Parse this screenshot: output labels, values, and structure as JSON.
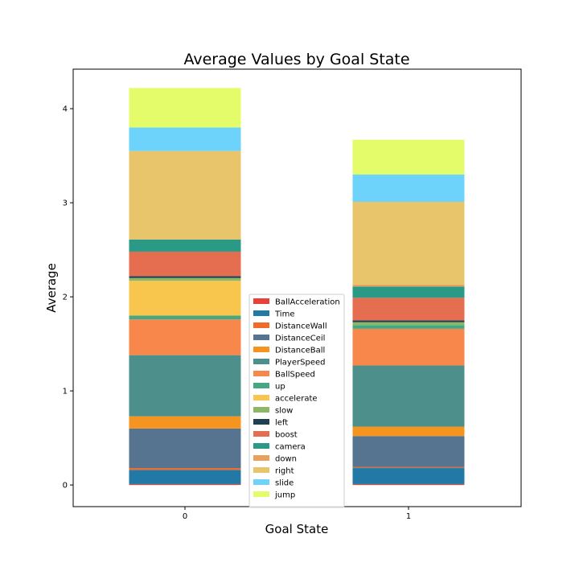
{
  "chart_data": {
    "type": "bar",
    "stacked": true,
    "title": "Average Values by Goal State",
    "xlabel": "Goal State",
    "ylabel": "Average",
    "categories": [
      "0",
      "1"
    ],
    "ylim": [
      -0.23,
      4.42
    ],
    "yticks": [
      0,
      1,
      2,
      3,
      4
    ],
    "grid": false,
    "legend_position": "bottom-center",
    "series": [
      {
        "name": "BallAcceleration",
        "color": "#e8403a",
        "values": [
          0.01,
          0.01
        ]
      },
      {
        "name": "Time",
        "color": "#2279a6",
        "values": [
          0.15,
          0.17
        ]
      },
      {
        "name": "DistanceWall",
        "color": "#f06a2a",
        "values": [
          0.02,
          0.01
        ]
      },
      {
        "name": "DistanceCeil",
        "color": "#56738f",
        "values": [
          0.42,
          0.33
        ]
      },
      {
        "name": "DistanceBall",
        "color": "#f5941f",
        "values": [
          0.13,
          0.1
        ]
      },
      {
        "name": "PlayerSpeed",
        "color": "#4c8f8b",
        "values": [
          0.65,
          0.65
        ]
      },
      {
        "name": "BallSpeed",
        "color": "#f7874a",
        "values": [
          0.38,
          0.39
        ]
      },
      {
        "name": "up",
        "color": "#46a882",
        "values": [
          0.04,
          0.04
        ]
      },
      {
        "name": "accelerate",
        "color": "#f8c64c",
        "values": [
          0.37,
          0.0
        ]
      },
      {
        "name": "slow",
        "color": "#8db764",
        "values": [
          0.03,
          0.03
        ]
      },
      {
        "name": "left",
        "color": "#203f50",
        "values": [
          0.02,
          0.02
        ]
      },
      {
        "name": "boost",
        "color": "#e66e50",
        "values": [
          0.26,
          0.24
        ]
      },
      {
        "name": "camera",
        "color": "#2a9a86",
        "values": [
          0.13,
          0.12
        ]
      },
      {
        "name": "down",
        "color": "#e9a15e",
        "values": [
          0.0,
          0.02
        ]
      },
      {
        "name": "right",
        "color": "#e8c46b",
        "values": [
          0.94,
          0.88
        ]
      },
      {
        "name": "slide",
        "color": "#6dd3fb",
        "values": [
          0.25,
          0.29
        ]
      },
      {
        "name": "jump",
        "color": "#e4fc69",
        "values": [
          0.42,
          0.37
        ]
      }
    ]
  }
}
